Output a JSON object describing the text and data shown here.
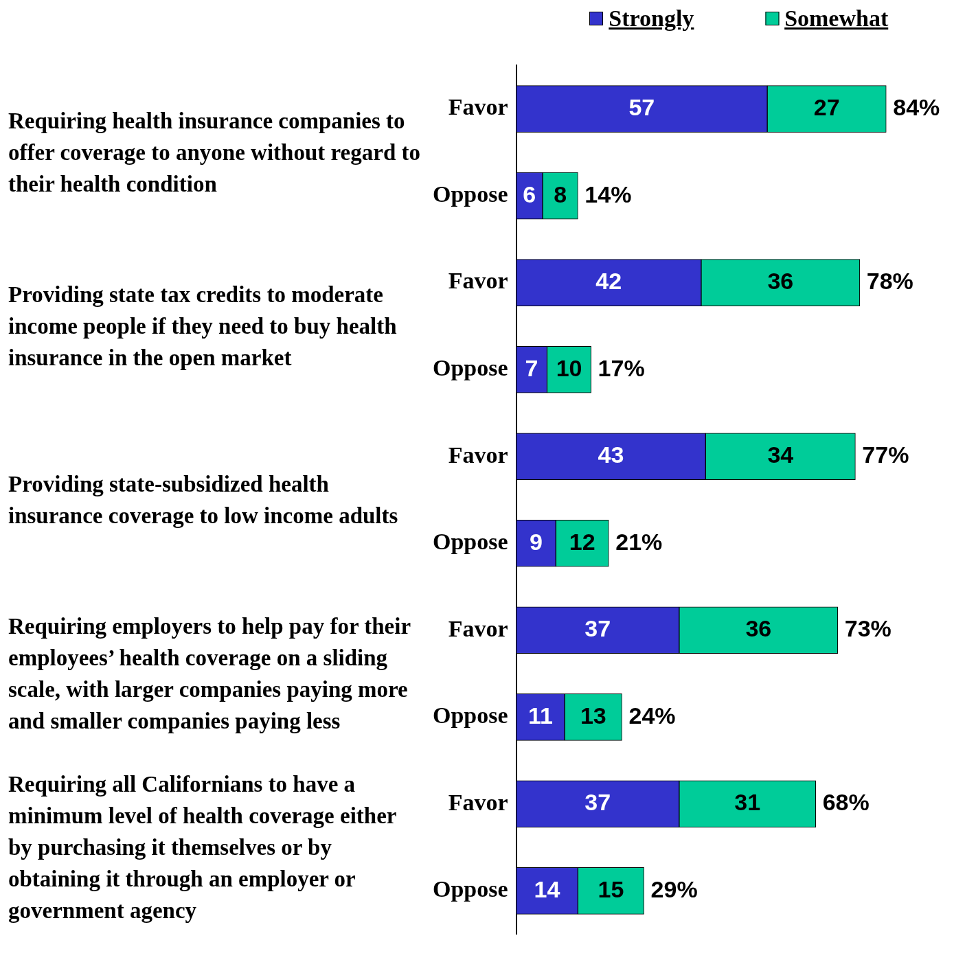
{
  "chart_data": {
    "type": "bar",
    "orientation": "horizontal",
    "stacked": true,
    "data_labels": true,
    "legend": "top",
    "categories": [
      "Favor",
      "Oppose",
      "Favor",
      "Oppose",
      "Favor",
      "Oppose",
      "Favor",
      "Oppose",
      "Favor",
      "Oppose"
    ],
    "series": [
      {
        "name": "Strongly",
        "color": "#3333cc",
        "values": [
          57,
          6,
          42,
          7,
          43,
          9,
          37,
          11,
          37,
          14
        ]
      },
      {
        "name": "Somewhat",
        "color": "#00cc99",
        "values": [
          27,
          8,
          36,
          10,
          34,
          12,
          36,
          13,
          31,
          15
        ]
      }
    ],
    "totals": [
      "84%",
      "14%",
      "78%",
      "17%",
      "77%",
      "21%",
      "73%",
      "24%",
      "68%",
      "29%"
    ],
    "annotations": [
      "Requiring health insurance companies to offer coverage to anyone without regard to their health condition",
      "Providing state tax credits to moderate income people if they need to buy health insurance in the open market",
      "Providing state-subsidized health insurance coverage to low income adults",
      "Requiring employers to help pay for their employees’ health coverage on a sliding scale, with larger companies paying more and smaller companies paying less",
      "Requiring all Californians to have a minimum level of health coverage either by purchasing it themselves or by obtaining it through an employer or government agency"
    ]
  }
}
